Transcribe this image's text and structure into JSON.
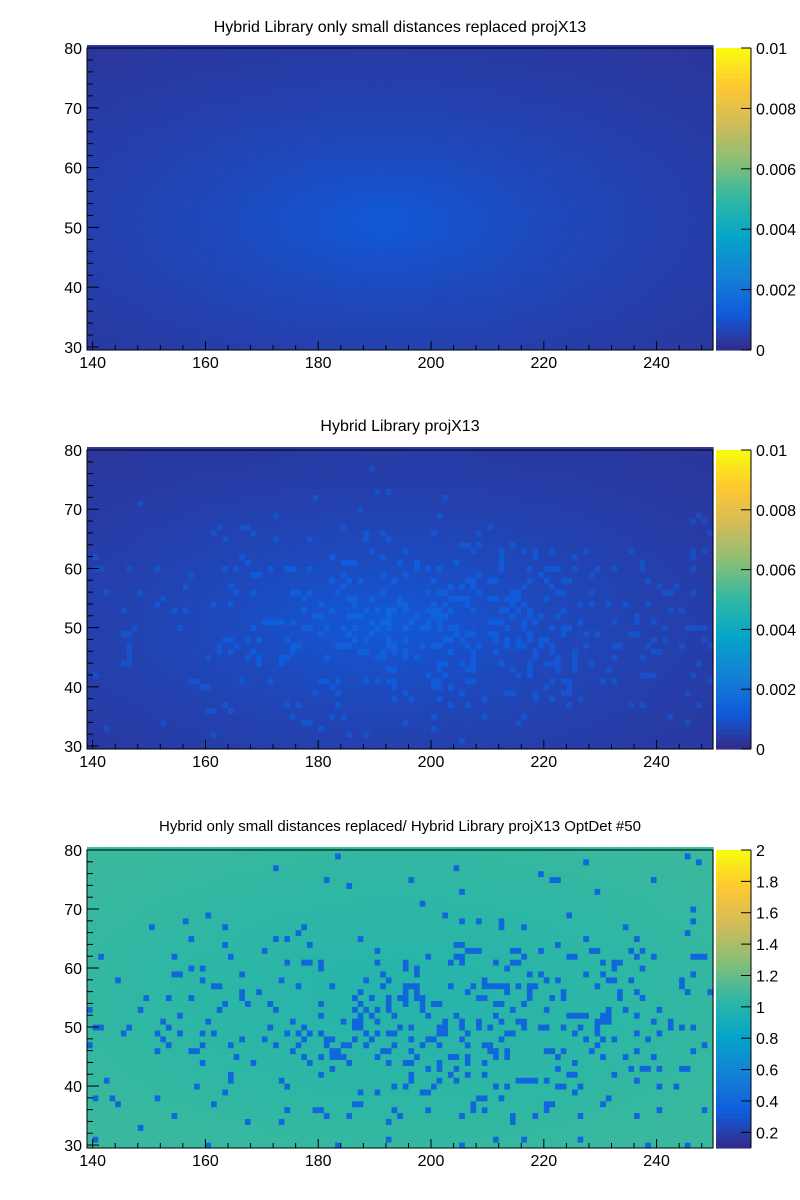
{
  "chart_data": [
    {
      "type": "heatmap",
      "title": "Hybrid Library only small distances replaced projX13",
      "xlim": [
        139,
        250
      ],
      "ylim": [
        29.5,
        80
      ],
      "xticks": [
        "140",
        "160",
        "180",
        "200",
        "220",
        "240"
      ],
      "yticks": [
        "30",
        "40",
        "50",
        "60",
        "70",
        "80"
      ],
      "zlim": [
        0,
        0.01
      ],
      "zticks": [
        "0",
        "0.002",
        "0.004",
        "0.006",
        "0.008",
        "0.01"
      ],
      "peak": {
        "x": 191.5,
        "y": 51,
        "z": 0.0012
      },
      "outliers": "none",
      "colormap": "viridis-like"
    },
    {
      "type": "heatmap",
      "title": "Hybrid Library projX13",
      "xlim": [
        139,
        250
      ],
      "ylim": [
        29.5,
        80
      ],
      "xticks": [
        "140",
        "160",
        "180",
        "200",
        "220",
        "240"
      ],
      "yticks": [
        "30",
        "40",
        "50",
        "60",
        "70",
        "80"
      ],
      "zlim": [
        0,
        0.01
      ],
      "zticks": [
        "0",
        "0.002",
        "0.004",
        "0.006",
        "0.008",
        "0.01"
      ],
      "peak": {
        "x": 191.5,
        "y": 51,
        "z": 0.0012
      },
      "outliers": "scattered brighter bins",
      "colormap": "viridis-like"
    },
    {
      "type": "heatmap",
      "title": "Hybrid only small distances replaced/ Hybrid Library projX13 OptDet #50",
      "xlim": [
        139,
        250
      ],
      "ylim": [
        29.5,
        80
      ],
      "xticks": [
        "140",
        "160",
        "180",
        "200",
        "220",
        "240"
      ],
      "yticks": [
        "30",
        "40",
        "50",
        "60",
        "70",
        "80"
      ],
      "zlim": [
        0.1,
        2
      ],
      "zticks": [
        "0.2",
        "0.4",
        "0.6",
        "0.8",
        "1",
        "1.2",
        "1.4",
        "1.6",
        "1.8",
        "2"
      ],
      "baseline_value": 1.0,
      "outlier_value": 0.4,
      "colormap": "viridis-like"
    }
  ],
  "colors": {
    "c0": "#352a87",
    "c1": "#0f5cdd",
    "c2": "#1481d6",
    "c3": "#06a4ca",
    "c4": "#2eb7a4",
    "c5": "#87bf77",
    "c6": "#d1bb59",
    "c7": "#fec832",
    "c8": "#f9fb0e"
  }
}
